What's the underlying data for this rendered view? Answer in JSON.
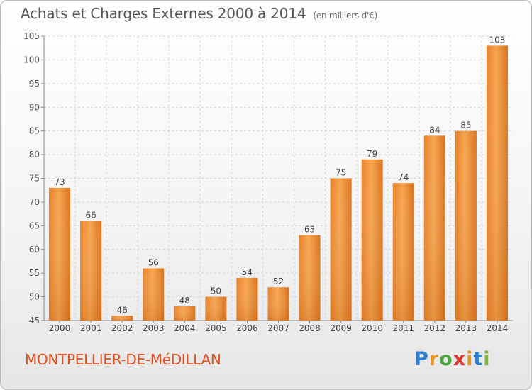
{
  "header": {
    "title": "Achats et Charges Externes 2000 à 2014",
    "subtitle": "(en milliers d'€)"
  },
  "footer": {
    "city": "MONTPELLIER-DE-MéDILLAN",
    "logo": "Proxiti"
  },
  "chart_data": {
    "type": "bar",
    "categories": [
      "2000",
      "2001",
      "2002",
      "2003",
      "2004",
      "2005",
      "2006",
      "2007",
      "2008",
      "2009",
      "2010",
      "2011",
      "2012",
      "2013",
      "2014"
    ],
    "values": [
      73,
      66,
      46,
      56,
      48,
      50,
      54,
      52,
      63,
      75,
      79,
      74,
      84,
      85,
      103
    ],
    "ylim": [
      45,
      105
    ],
    "yticks": [
      45,
      50,
      55,
      60,
      65,
      70,
      75,
      80,
      85,
      90,
      95,
      100,
      105
    ],
    "grid": true,
    "bar_color_light": "#f7a54f",
    "bar_color_dark": "#d8741f"
  }
}
